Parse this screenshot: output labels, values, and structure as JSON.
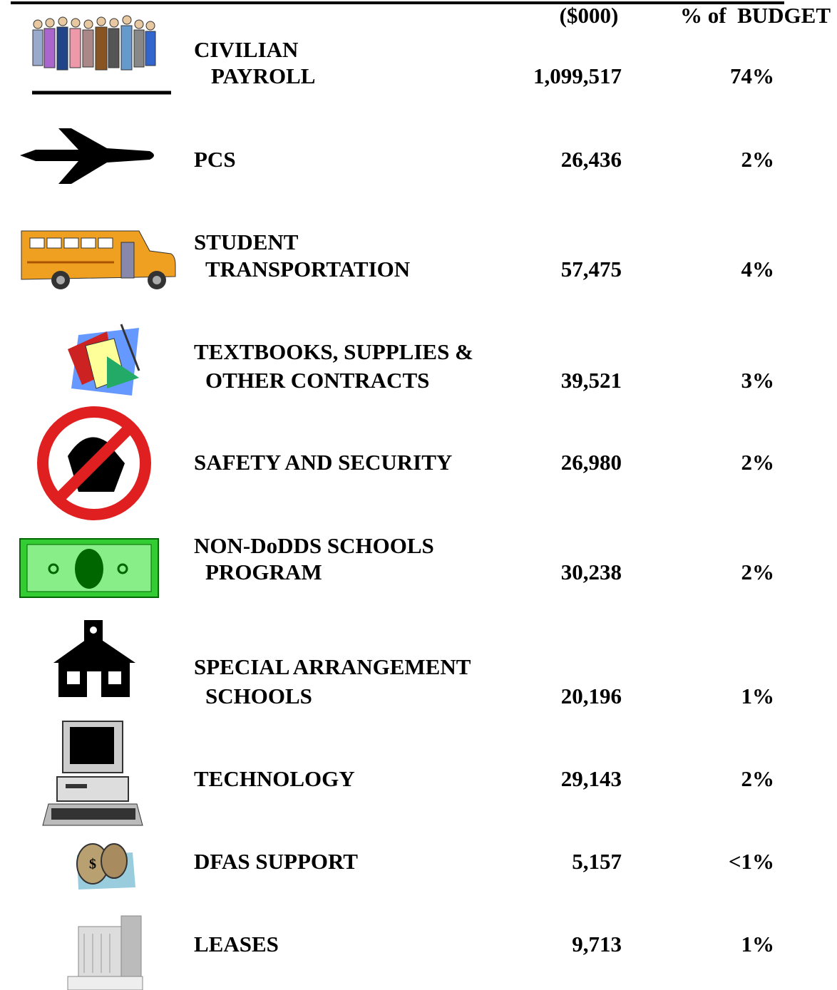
{
  "header": {
    "amount": "($000)",
    "percent": "% of  BUDGET"
  },
  "rows": [
    {
      "label": [
        "CIVILIAN",
        "PAYROLL"
      ],
      "amount": "1,099,517",
      "percent": "74%"
    },
    {
      "label": [
        "PCS"
      ],
      "amount": "26,436",
      "percent": "2%"
    },
    {
      "label": [
        "STUDENT",
        "TRANSPORTATION"
      ],
      "amount": "57,475",
      "percent": "4%"
    },
    {
      "label": [
        "TEXTBOOKS, SUPPLIES &",
        "OTHER CONTRACTS"
      ],
      "amount": "39,521",
      "percent": "3%"
    },
    {
      "label": [
        "SAFETY AND SECURITY"
      ],
      "amount": "26,980",
      "percent": "2%"
    },
    {
      "label": [
        "NON-DoDDS SCHOOLS",
        "PROGRAM"
      ],
      "amount": "30,238",
      "percent": "2%"
    },
    {
      "label": [
        "SPECIAL ARRANGEMENT",
        "SCHOOLS"
      ],
      "amount": "20,196",
      "percent": "1%"
    },
    {
      "label": [
        "TECHNOLOGY"
      ],
      "amount": "29,143",
      "percent": "2%"
    },
    {
      "label": [
        "DFAS SUPPORT"
      ],
      "amount": "5,157",
      "percent": "<1%"
    },
    {
      "label": [
        "LEASES"
      ],
      "amount": "9,713",
      "percent": "1%"
    }
  ]
}
